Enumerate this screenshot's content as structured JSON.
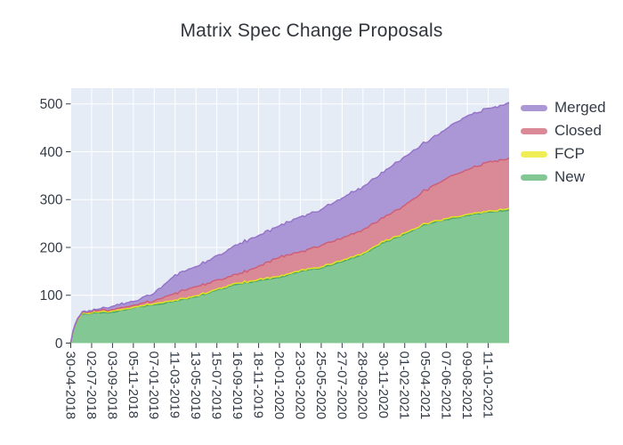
{
  "chart_data": {
    "type": "area",
    "stacked": true,
    "title": "Matrix Spec Change Proposals",
    "grid": true,
    "plot_bg_color": "#e5ecf6",
    "grid_color": "#ffffff",
    "axis_text_color": "#333b47",
    "title_color": "#30353c",
    "ylim": [
      0,
      533
    ],
    "yticks": [
      0,
      100,
      200,
      300,
      400,
      500
    ],
    "x_tick_labels": [
      "30-04-2018",
      "02-07-2018",
      "03-09-2018",
      "05-11-2018",
      "07-01-2019",
      "11-03-2019",
      "13-05-2019",
      "15-07-2019",
      "16-09-2019",
      "18-11-2019",
      "20-01-2020",
      "23-03-2020",
      "25-05-2020",
      "27-07-2020",
      "28-09-2020",
      "30-11-2020",
      "01-02-2021",
      "05-04-2021",
      "07-06-2021",
      "09-08-2021",
      "11-10-2021"
    ],
    "x_weeks_per_tick": 9,
    "x_total_weeks": 189,
    "anchor_weeks": [
      0,
      9,
      18,
      27,
      36,
      45,
      54,
      63,
      72,
      81,
      90,
      99,
      108,
      117,
      126,
      135,
      144,
      153,
      162,
      171,
      180,
      189
    ],
    "legend_position": "right",
    "legend_order_top_to_bottom": [
      "Merged",
      "Closed",
      "FCP",
      "New"
    ],
    "series": [
      {
        "name": "New",
        "fill_color": "#83c795",
        "line_color": "#4aa56a",
        "values_at_anchors": [
          1,
          62,
          65,
          74,
          80,
          88,
          97,
          111,
          123,
          131,
          137,
          150,
          157,
          170,
          186,
          210,
          228,
          248,
          258,
          267,
          274,
          279
        ]
      },
      {
        "name": "FCP",
        "fill_color": "#efef55",
        "line_color": "#e3e322",
        "values_at_anchors": [
          0,
          1,
          2,
          1,
          2,
          2,
          2,
          2,
          2,
          2,
          2,
          2,
          2,
          2,
          2,
          2,
          2,
          2,
          2,
          2,
          2,
          3
        ]
      },
      {
        "name": "Closed",
        "fill_color": "#da8a97",
        "line_color": "#ce5f76",
        "values_at_anchors": [
          0,
          2,
          3,
          4,
          6,
          15,
          19,
          19,
          18,
          28,
          40,
          39,
          45,
          47,
          49,
          50,
          58,
          70,
          84,
          93,
          103,
          105
        ]
      },
      {
        "name": "Merged",
        "fill_color": "#ac97d6",
        "line_color": "#9674ca",
        "values_at_anchors": [
          0,
          2,
          7,
          8,
          16,
          38,
          42,
          51,
          62,
          64,
          66,
          73,
          75,
          84,
          90,
          95,
          102,
          99,
          104,
          113,
          112,
          116
        ]
      }
    ]
  }
}
